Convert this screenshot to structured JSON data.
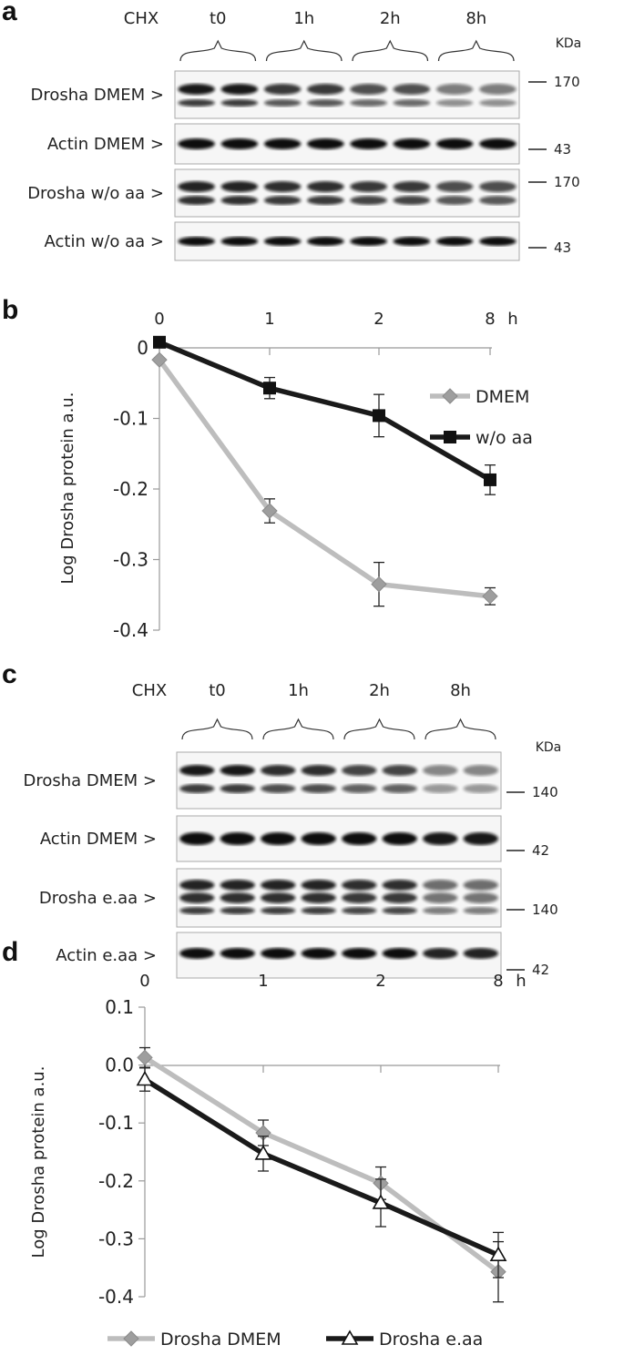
{
  "panel_a": {
    "letter": "a",
    "header": "CHX",
    "timepoints": [
      "t0",
      "1h",
      "2h",
      "8h"
    ],
    "unit": "KDa",
    "blots": [
      {
        "label": "Drosha DMEM >",
        "marker": "170"
      },
      {
        "label": "Actin DMEM >",
        "marker": "43"
      },
      {
        "label": "Drosha w/o aa >",
        "marker": "170"
      },
      {
        "label": "Actin w/o aa >",
        "marker": "43"
      }
    ]
  },
  "panel_c": {
    "letter": "c",
    "header": "CHX",
    "timepoints": [
      "t0",
      "1h",
      "2h",
      "8h"
    ],
    "unit": "KDa",
    "blots": [
      {
        "label": "Drosha DMEM >",
        "marker": "140"
      },
      {
        "label": "Actin DMEM >",
        "marker": "42"
      },
      {
        "label": "Drosha e.aa >",
        "marker": "140"
      },
      {
        "label": "Actin e.aa >",
        "marker": "42"
      }
    ]
  },
  "chart_data": [
    {
      "panel": "b",
      "type": "line",
      "title": "",
      "xlabel": "h",
      "ylabel": "Log Drosha protein  a.u.",
      "categories": [
        "0",
        "1",
        "2",
        "8"
      ],
      "yticks": [
        "0",
        "-0.1",
        "-0.2",
        "-0.3",
        "-0.4"
      ],
      "ylim": [
        -0.4,
        0
      ],
      "legend_position": "right",
      "series": [
        {
          "name": "DMEM",
          "values": [
            -0.017,
            -0.231,
            -0.335,
            -0.352
          ],
          "errors": [
            0.0,
            0.017,
            0.031,
            0.012
          ],
          "color": "#bdbdbd",
          "marker": "diamond"
        },
        {
          "name": "w/o aa",
          "values": [
            0.008,
            -0.057,
            -0.096,
            -0.187
          ],
          "errors": [
            0.0,
            0.015,
            0.03,
            0.021
          ],
          "color": "#1a1a1a",
          "marker": "square"
        }
      ]
    },
    {
      "panel": "d",
      "type": "line",
      "title": "",
      "xlabel": "h",
      "ylabel": "Log Drosha protein  a.u.",
      "categories": [
        "0",
        "1",
        "2",
        "8"
      ],
      "yticks": [
        "0.1",
        "0.0",
        "-0.1",
        "-0.2",
        "-0.3",
        "-0.4"
      ],
      "ylim": [
        -0.4,
        0.1
      ],
      "legend_position": "bottom",
      "series": [
        {
          "name": "Drosha DMEM",
          "values": [
            0.013,
            -0.117,
            -0.204,
            -0.357
          ],
          "errors": [
            0.017,
            0.022,
            0.028,
            0.052
          ],
          "color": "#bdbdbd",
          "marker": "diamond"
        },
        {
          "name": "Drosha e.aa",
          "values": [
            -0.025,
            -0.153,
            -0.238,
            -0.328
          ],
          "errors": [
            0.02,
            0.03,
            0.041,
            0.039
          ],
          "color": "#1a1a1a",
          "marker": "triangle"
        }
      ]
    }
  ]
}
